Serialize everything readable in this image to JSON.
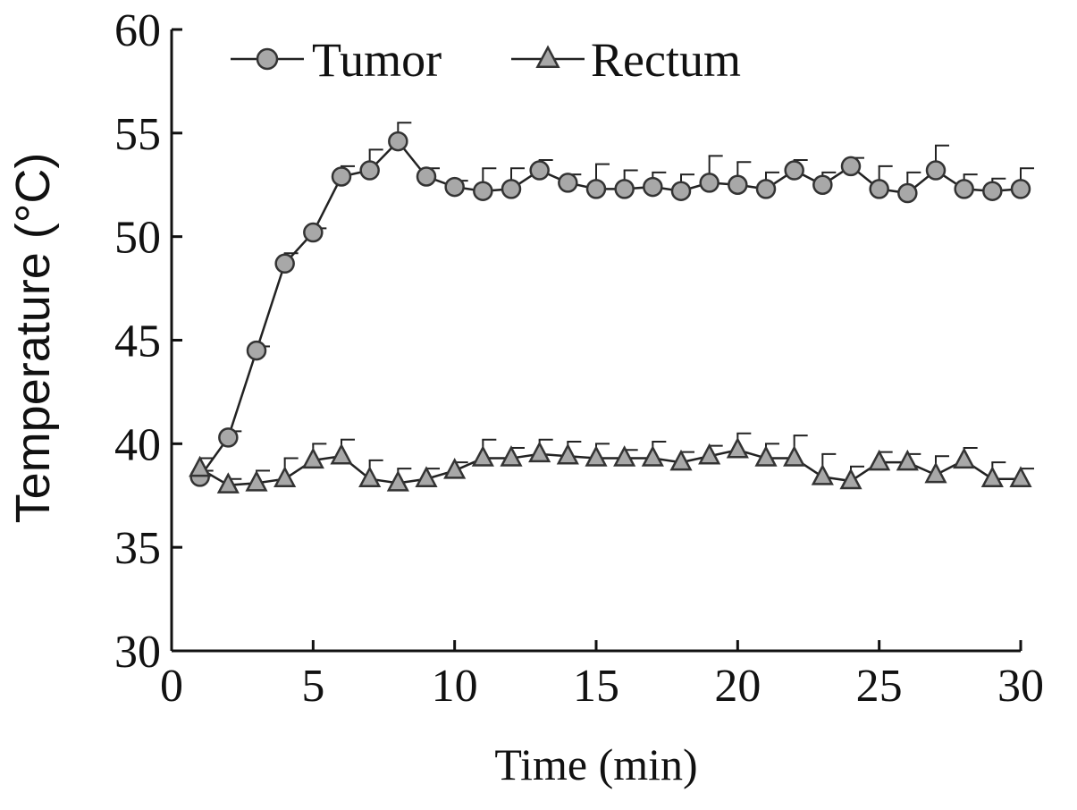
{
  "chart_data": {
    "type": "line",
    "title": "",
    "xlabel": "Time (min)",
    "ylabel": "Temperature (°C)",
    "xlim": [
      0,
      30
    ],
    "ylim": [
      30,
      60
    ],
    "xticks": [
      "0",
      "5",
      "10",
      "15",
      "20",
      "25",
      "30"
    ],
    "yticks": [
      "30",
      "35",
      "40",
      "45",
      "50",
      "55",
      "60"
    ],
    "grid": false,
    "legend_position": "top",
    "x": [
      1,
      2,
      3,
      4,
      5,
      6,
      7,
      8,
      9,
      10,
      11,
      12,
      13,
      14,
      15,
      16,
      17,
      18,
      19,
      20,
      21,
      22,
      23,
      24,
      25,
      26,
      27,
      28,
      29,
      30
    ],
    "series": [
      {
        "name": "Tumor",
        "marker": "circle",
        "values": [
          38.4,
          40.3,
          44.5,
          48.7,
          50.2,
          52.9,
          53.2,
          54.6,
          52.9,
          52.4,
          52.2,
          52.3,
          53.2,
          52.6,
          52.3,
          52.3,
          52.4,
          52.2,
          52.6,
          52.5,
          52.3,
          53.2,
          52.5,
          53.4,
          52.3,
          52.1,
          53.2,
          52.3,
          52.2,
          52.3
        ],
        "errors": [
          0.3,
          0.3,
          0.2,
          0.5,
          0.2,
          0.5,
          1.0,
          0.9,
          0.4,
          0.3,
          1.1,
          1.0,
          0.5,
          0.4,
          1.2,
          0.9,
          0.7,
          0.8,
          1.3,
          1.1,
          0.8,
          0.5,
          0.6,
          0.4,
          1.1,
          1.0,
          1.2,
          0.7,
          0.6,
          1.0
        ]
      },
      {
        "name": "Rectum",
        "marker": "triangle",
        "values": [
          38.8,
          38.0,
          38.1,
          38.3,
          39.2,
          39.4,
          38.3,
          38.1,
          38.3,
          38.7,
          39.3,
          39.3,
          39.5,
          39.4,
          39.3,
          39.3,
          39.3,
          39.1,
          39.4,
          39.7,
          39.3,
          39.3,
          38.4,
          38.2,
          39.1,
          39.1,
          38.5,
          39.2,
          38.3,
          38.3
        ],
        "errors": [
          0.5,
          0.3,
          0.6,
          1.0,
          0.8,
          0.8,
          0.9,
          0.7,
          0.5,
          0.4,
          0.9,
          0.5,
          0.7,
          0.7,
          0.7,
          0.4,
          0.8,
          0.5,
          0.5,
          0.8,
          0.7,
          1.1,
          1.1,
          0.7,
          0.5,
          0.4,
          0.9,
          0.6,
          0.8,
          0.5
        ]
      }
    ],
    "colors": {
      "axis": "#111111",
      "line": "#222222",
      "marker_fill": "#a8a8a8",
      "marker_stroke": "#333333"
    }
  }
}
